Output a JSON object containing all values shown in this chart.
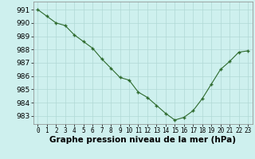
{
  "x": [
    0,
    1,
    2,
    3,
    4,
    5,
    6,
    7,
    8,
    9,
    10,
    11,
    12,
    13,
    14,
    15,
    16,
    17,
    18,
    19,
    20,
    21,
    22,
    23
  ],
  "y": [
    991.0,
    990.5,
    990.0,
    989.8,
    989.1,
    988.6,
    988.1,
    987.3,
    986.6,
    985.9,
    985.7,
    984.8,
    984.4,
    983.8,
    983.2,
    982.7,
    982.9,
    983.4,
    984.3,
    985.4,
    986.5,
    987.1,
    987.8,
    987.9
  ],
  "line_color": "#2d6a2d",
  "marker": "+",
  "marker_size": 3.5,
  "marker_lw": 1.0,
  "line_width": 0.8,
  "bg_color": "#cef0ee",
  "grid_color": "#b0d8d5",
  "xlabel": "Graphe pression niveau de la mer (hPa)",
  "xlabel_fontsize": 7.5,
  "ytick_fontsize": 6.5,
  "xtick_fontsize": 5.5,
  "ylabel_ticks": [
    983,
    984,
    985,
    986,
    987,
    988,
    989,
    990,
    991
  ],
  "xlim": [
    -0.5,
    23.5
  ],
  "ylim": [
    982.4,
    991.6
  ]
}
